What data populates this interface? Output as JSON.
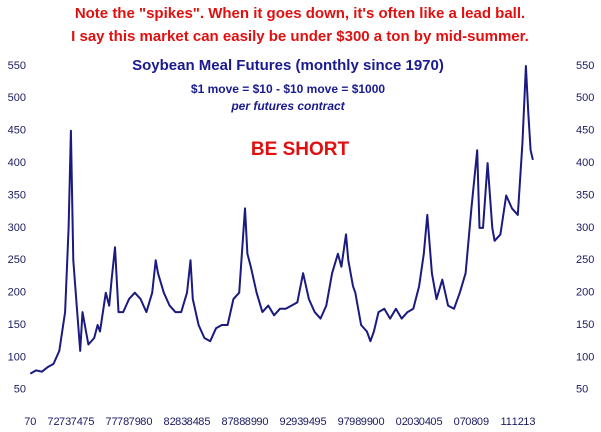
{
  "header": [
    "Note the \"spikes\". When it goes down, it's often like a lead ball.",
    "I say this market can easily be under $300 a ton by mid-summer."
  ],
  "chart_data": {
    "type": "line",
    "title": "Soybean Meal Futures (monthly since 1970)",
    "subtitle": [
      "$1 move = $10 - $10 move = $1000",
      "per futures contract"
    ],
    "annotation": "BE SHORT",
    "x": [
      1970,
      1970.5,
      1971,
      1971.5,
      1972,
      1972.5,
      1973,
      1973.3,
      1973.5,
      1973.7,
      1974,
      1974.3,
      1974.5,
      1974.8,
      1975,
      1975.5,
      1975.8,
      1976,
      1976.5,
      1976.8,
      1977,
      1977.3,
      1977.6,
      1978,
      1978.5,
      1979,
      1979.5,
      1980,
      1980.5,
      1980.8,
      1981,
      1981.5,
      1982,
      1982.5,
      1983,
      1983.5,
      1983.8,
      1984,
      1984.5,
      1985,
      1985.5,
      1986,
      1986.5,
      1987,
      1987.5,
      1988,
      1988.5,
      1988.7,
      1989,
      1989.5,
      1990,
      1990.5,
      1991,
      1991.5,
      1992,
      1992.5,
      1993,
      1993.5,
      1994,
      1994.5,
      1995,
      1995.5,
      1996,
      1996.5,
      1996.8,
      1997.2,
      1997.4,
      1997.8,
      1998,
      1998.5,
      1999,
      1999.3,
      1999.6,
      2000,
      2000.5,
      2001,
      2001.5,
      2002,
      2002.5,
      2003,
      2003.5,
      2003.9,
      2004.2,
      2004.6,
      2005,
      2005.5,
      2006,
      2006.5,
      2007,
      2007.5,
      2008,
      2008.5,
      2008.7,
      2009,
      2009.4,
      2009.8,
      2010,
      2010.5,
      2011,
      2011.5,
      2012,
      2012.4,
      2012.7,
      2012.9,
      2013.1,
      2013.3
    ],
    "series": [
      {
        "name": "Soybean Meal",
        "color": "#1a1a80",
        "values": [
          75,
          80,
          78,
          85,
          90,
          110,
          170,
          300,
          450,
          250,
          180,
          110,
          170,
          140,
          120,
          130,
          150,
          140,
          200,
          180,
          220,
          270,
          170,
          170,
          190,
          200,
          190,
          170,
          200,
          250,
          230,
          200,
          180,
          170,
          170,
          200,
          250,
          190,
          150,
          130,
          125,
          145,
          150,
          150,
          190,
          200,
          330,
          260,
          240,
          200,
          170,
          180,
          165,
          175,
          175,
          180,
          185,
          230,
          190,
          170,
          160,
          180,
          230,
          260,
          240,
          290,
          250,
          210,
          200,
          150,
          140,
          125,
          140,
          170,
          175,
          160,
          175,
          160,
          170,
          175,
          210,
          260,
          320,
          230,
          190,
          220,
          180,
          175,
          200,
          230,
          330,
          420,
          300,
          300,
          400,
          300,
          280,
          290,
          350,
          330,
          320,
          430,
          550,
          480,
          420,
          405
        ]
      }
    ],
    "xlim": [
      1969.8,
      2014
    ],
    "xticks": [
      {
        "value": 1970,
        "label": "70"
      },
      {
        "value": 1972,
        "label": "72"
      },
      {
        "value": 1973,
        "label": "73"
      },
      {
        "value": 1974,
        "label": "74"
      },
      {
        "value": 1975,
        "label": "75"
      },
      {
        "value": 1977,
        "label": "77"
      },
      {
        "value": 1978,
        "label": "78"
      },
      {
        "value": 1979,
        "label": "79"
      },
      {
        "value": 1980,
        "label": "80"
      },
      {
        "value": 1982,
        "label": "82"
      },
      {
        "value": 1983,
        "label": "83"
      },
      {
        "value": 1984,
        "label": "84"
      },
      {
        "value": 1985,
        "label": "85"
      },
      {
        "value": 1987,
        "label": "87"
      },
      {
        "value": 1988,
        "label": "88"
      },
      {
        "value": 1989,
        "label": "89"
      },
      {
        "value": 1990,
        "label": "90"
      },
      {
        "value": 1992,
        "label": "92"
      },
      {
        "value": 1993,
        "label": "93"
      },
      {
        "value": 1994,
        "label": "94"
      },
      {
        "value": 1995,
        "label": "95"
      },
      {
        "value": 1997,
        "label": "97"
      },
      {
        "value": 1998,
        "label": "98"
      },
      {
        "value": 1999,
        "label": "99"
      },
      {
        "value": 2000,
        "label": "00"
      },
      {
        "value": 2002,
        "label": "02"
      },
      {
        "value": 2003,
        "label": "03"
      },
      {
        "value": 2004,
        "label": "04"
      },
      {
        "value": 2005,
        "label": "05"
      },
      {
        "value": 2007,
        "label": "07"
      },
      {
        "value": 2008,
        "label": "08"
      },
      {
        "value": 2009,
        "label": "09"
      },
      {
        "value": 2011,
        "label": "11"
      },
      {
        "value": 2012,
        "label": "12"
      },
      {
        "value": 2013,
        "label": "13"
      }
    ],
    "ylim": [
      25,
      570
    ],
    "yticks": [
      50,
      100,
      150,
      200,
      250,
      300,
      350,
      400,
      450,
      500,
      550
    ]
  }
}
